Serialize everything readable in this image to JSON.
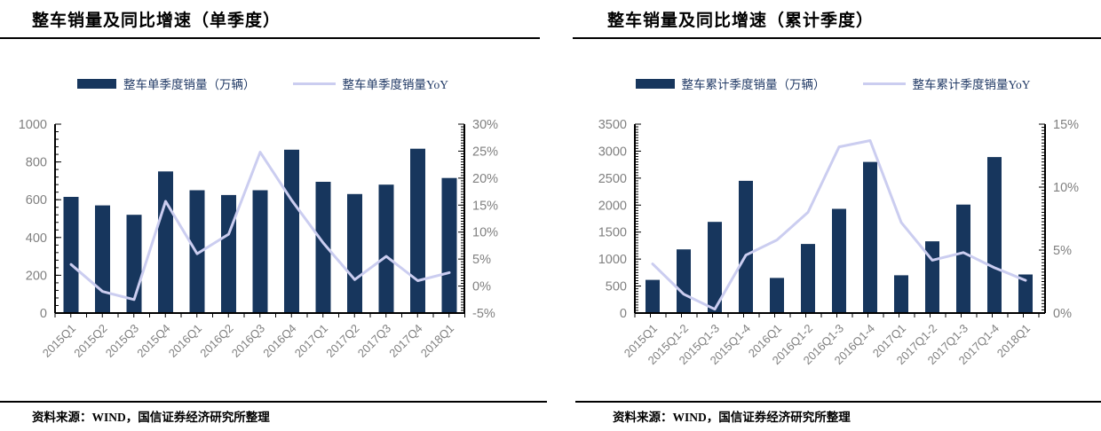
{
  "colors": {
    "bar": "#17365D",
    "line": "#CBCDF0",
    "legend_text": "#1F3864",
    "axis_text": "#808080",
    "axis_line": "#000000",
    "title_text": "#000000"
  },
  "chart_data": [
    {
      "type": "bar",
      "title": "整车销量及同比增速（单季度）",
      "legend": [
        {
          "series": "bar",
          "label": "整车单季度销量（万辆）"
        },
        {
          "series": "line",
          "label": "整车单季度销量YoY"
        }
      ],
      "categories": [
        "2015Q1",
        "2015Q2",
        "2015Q3",
        "2015Q4",
        "2016Q1",
        "2016Q2",
        "2016Q3",
        "2016Q4",
        "2017Q1",
        "2017Q2",
        "2017Q3",
        "2017Q4",
        "2018Q1"
      ],
      "series": [
        {
          "name": "整车单季度销量（万辆）",
          "type": "bar",
          "axis": "left",
          "values": [
            615,
            570,
            520,
            750,
            650,
            625,
            650,
            865,
            695,
            630,
            680,
            870,
            715
          ]
        },
        {
          "name": "整车单季度销量YoY",
          "type": "line",
          "axis": "right",
          "values": [
            4,
            -1,
            -2.5,
            15.7,
            6,
            9.6,
            24.8,
            15.9,
            8,
            1.2,
            5.5,
            1,
            2.5
          ]
        }
      ],
      "left_axis": {
        "min": 0,
        "max": 1000,
        "step": 200,
        "suffix": ""
      },
      "right_axis": {
        "min": -5,
        "max": 30,
        "step": 5,
        "suffix": "%"
      },
      "grid": false,
      "legend_position": "top",
      "source": "资料来源：WIND，国信证券经济研究所整理"
    },
    {
      "type": "bar",
      "title": "整车销量及同比增速（累计季度）",
      "legend": [
        {
          "series": "bar",
          "label": "整车累计季度销量（万辆）"
        },
        {
          "series": "line",
          "label": "整车累计季度销量YoY"
        }
      ],
      "categories": [
        "2015Q1",
        "2015Q1-2",
        "2015Q1-3",
        "2015Q1-4",
        "2016Q1",
        "2016Q1-2",
        "2016Q1-3",
        "2016Q1-4",
        "2017Q1",
        "2017Q1-2",
        "2017Q1-3",
        "2017Q1-4",
        "2018Q1"
      ],
      "series": [
        {
          "name": "整车累计季度销量（万辆）",
          "type": "bar",
          "axis": "left",
          "values": [
            615,
            1180,
            1690,
            2450,
            650,
            1280,
            1930,
            2800,
            700,
            1330,
            2010,
            2890,
            715
          ]
        },
        {
          "name": "整车累计季度销量YoY",
          "type": "line",
          "axis": "right",
          "values": [
            3.9,
            1.5,
            0.3,
            4.6,
            5.8,
            8.0,
            13.2,
            13.7,
            7.2,
            4.2,
            4.8,
            3.6,
            2.6
          ]
        }
      ],
      "left_axis": {
        "min": 0,
        "max": 3500,
        "step": 500,
        "suffix": ""
      },
      "right_axis": {
        "min": 0,
        "max": 15,
        "step": 5,
        "suffix": "%"
      },
      "grid": false,
      "legend_position": "top",
      "source": "资料来源：WIND，国信证券经济研究所整理"
    }
  ]
}
